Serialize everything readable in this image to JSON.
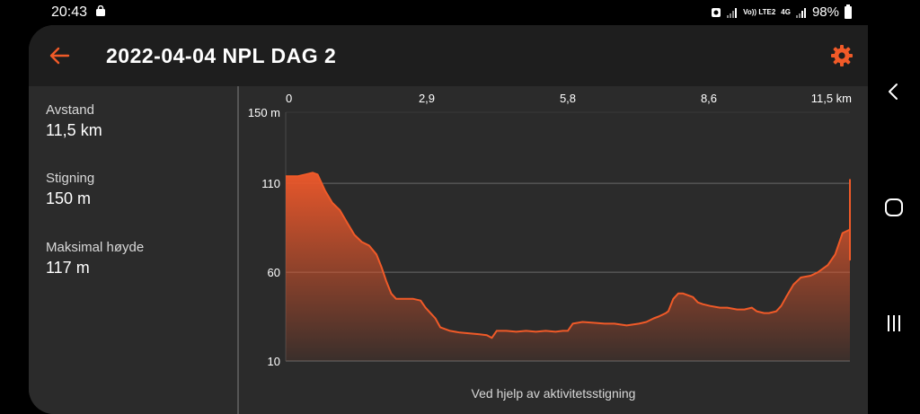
{
  "status_bar": {
    "time": "20:43",
    "network_tag": "Vo)) LTE2",
    "network_gen": "4G",
    "battery": "98%"
  },
  "header": {
    "title": "2022-04-04 NPL DAG 2",
    "back_icon": "arrow-left-icon",
    "settings_icon": "gear-icon"
  },
  "stats": [
    {
      "label": "Avstand",
      "value": "11,5 km"
    },
    {
      "label": "Stigning",
      "value": "150 m"
    },
    {
      "label": "Maksimal høyde",
      "value": "117 m"
    }
  ],
  "chart_data": {
    "type": "area",
    "x_ticks": [
      "0",
      "2,9",
      "5,8",
      "8,6",
      "11,5 km"
    ],
    "y_ticks": [
      "150 m",
      "110",
      "60",
      "10"
    ],
    "xlim": [
      0,
      11.5
    ],
    "ylim": [
      10,
      150
    ],
    "grid": true,
    "line_color": "#f05a28",
    "x": [
      0,
      0.25,
      0.4,
      0.55,
      0.65,
      0.7,
      0.8,
      0.95,
      1.1,
      1.25,
      1.4,
      1.55,
      1.7,
      1.85,
      1.95,
      2.05,
      2.15,
      2.25,
      2.45,
      2.6,
      2.75,
      2.85,
      2.95,
      3.05,
      3.15,
      3.35,
      3.55,
      3.75,
      3.95,
      4.1,
      4.2,
      4.3,
      4.5,
      4.7,
      4.9,
      5.1,
      5.3,
      5.5,
      5.65,
      5.75,
      5.85,
      6.05,
      6.3,
      6.5,
      6.7,
      6.95,
      7.2,
      7.35,
      7.5,
      7.6,
      7.75,
      7.8,
      7.9,
      8.0,
      8.1,
      8.2,
      8.3,
      8.4,
      8.5,
      8.65,
      8.85,
      9.0,
      9.2,
      9.35,
      9.5,
      9.6,
      9.75,
      9.85,
      10.0,
      10.1,
      10.2,
      10.35,
      10.5,
      10.7,
      10.85,
      10.95,
      11.05,
      11.2,
      11.35,
      11.5,
      11.5,
      11.5,
      11.5
    ],
    "y": [
      114,
      114,
      115,
      116,
      115,
      112,
      106,
      99,
      95,
      88,
      81,
      77,
      75,
      70,
      63,
      55,
      48,
      45,
      45,
      45,
      44,
      40,
      37,
      34,
      29,
      27,
      26,
      25.5,
      25,
      24.5,
      23,
      27,
      27,
      26.5,
      27,
      26.5,
      27,
      26.5,
      27,
      27,
      31,
      32,
      31.5,
      31,
      31,
      30,
      31,
      32,
      34,
      35,
      37,
      38,
      45,
      48,
      48,
      47,
      46,
      43,
      42,
      41,
      40,
      40,
      39,
      39,
      40,
      38,
      37,
      37,
      38,
      41,
      46,
      53,
      57,
      58,
      60,
      62,
      64,
      70,
      82,
      84,
      67,
      112,
      84
    ]
  },
  "caption": "Ved hjelp av aktivitetsstigning",
  "nav": {
    "back": "chevron-left-icon",
    "home": "home-icon",
    "recents": "recents-icon"
  }
}
